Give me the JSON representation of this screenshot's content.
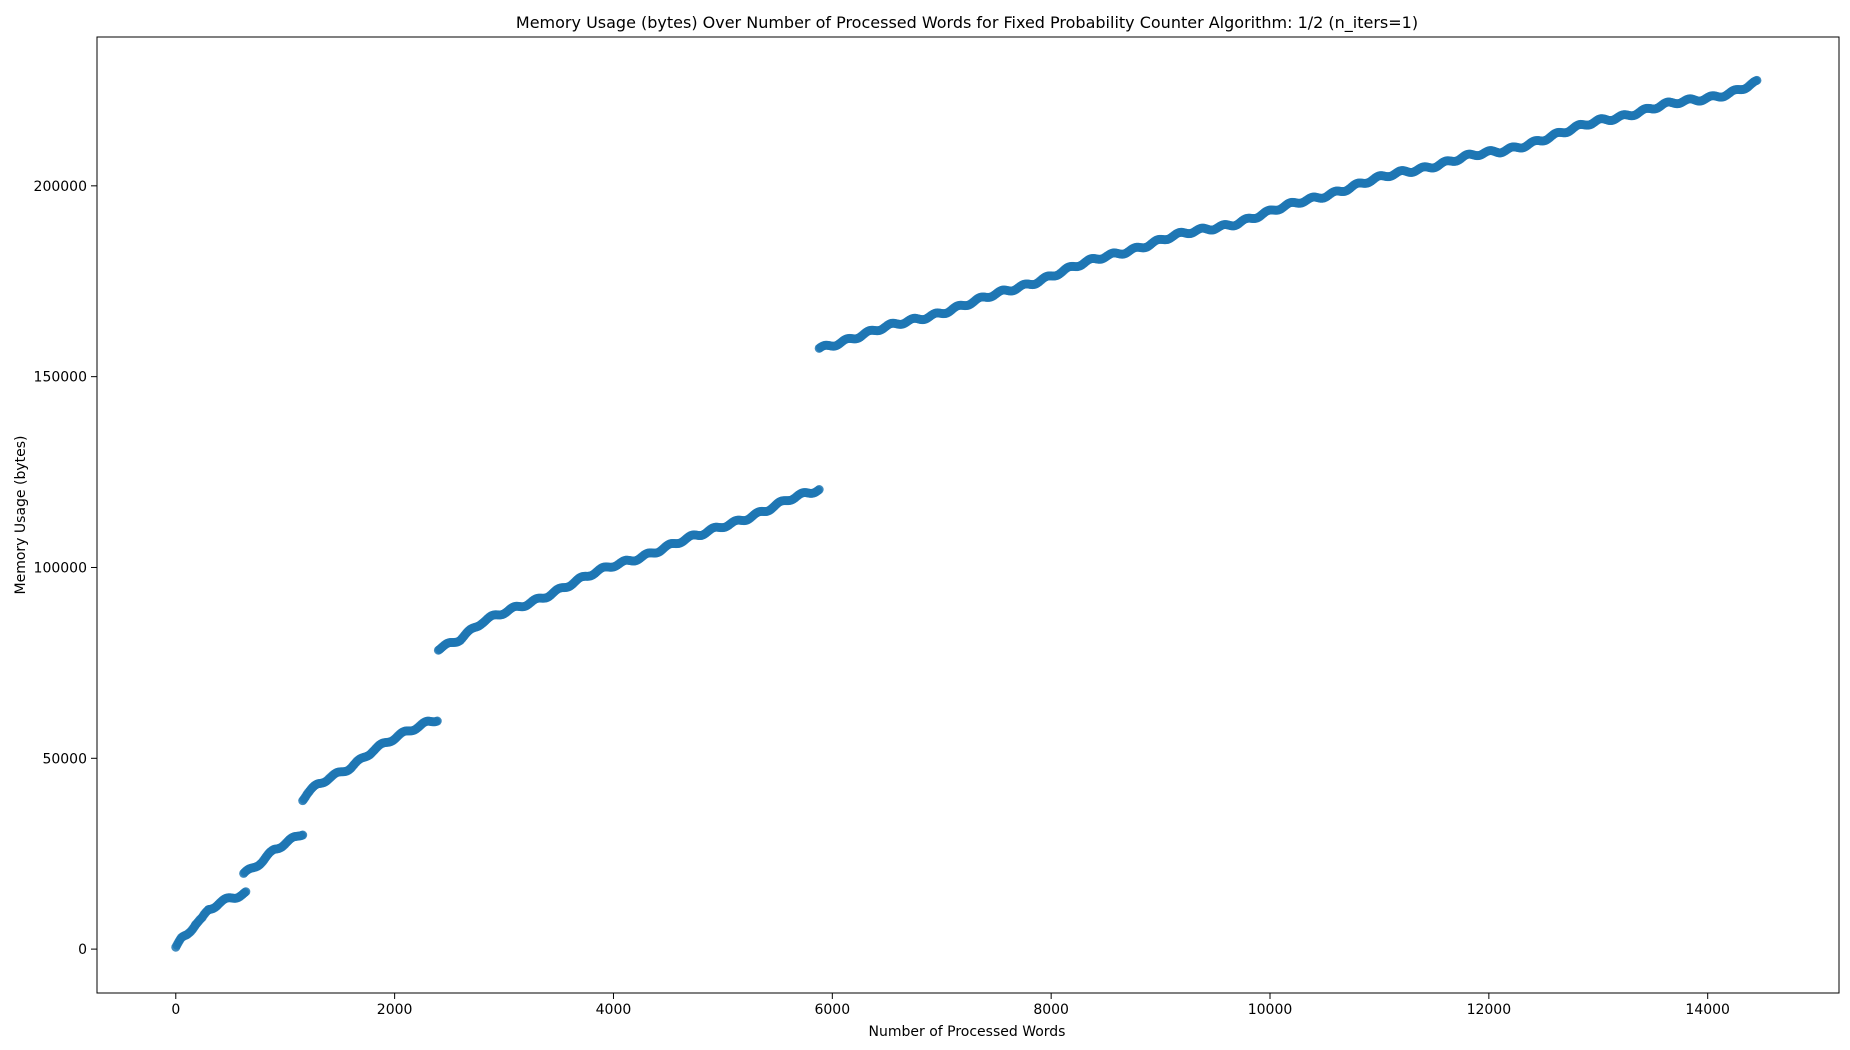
{
  "chart_data": {
    "type": "scatter",
    "title": "Memory Usage (bytes) Over Number of Processed Words for Fixed Probability Counter Algorithm: 1/2 (n_iters=1)",
    "xlabel": "Number of Processed Words",
    "ylabel": "Memory Usage (bytes)",
    "xlim": [
      -720,
      15200
    ],
    "ylim": [
      -11500,
      239000
    ],
    "xticks": [
      0,
      2000,
      4000,
      6000,
      8000,
      10000,
      12000,
      14000
    ],
    "xtick_labels": [
      "0",
      "2000",
      "4000",
      "6000",
      "8000",
      "10000",
      "12000",
      "14000"
    ],
    "yticks": [
      0,
      50000,
      100000,
      150000,
      200000
    ],
    "ytick_labels": [
      "0",
      "50000",
      "100000",
      "150000",
      "200000"
    ],
    "grid": false,
    "legend": false,
    "colors": {
      "marker": "#1f77b4",
      "axis": "#000000",
      "background": "#ffffff"
    },
    "series": [
      {
        "segments": [
          {
            "x": [
              0,
              50,
              100,
              150,
              180
            ],
            "y": [
              500,
              2400,
              3500,
              5200,
              6300
            ]
          },
          {
            "x": [
              180,
              240,
              300
            ],
            "y": [
              6300,
              7500,
              10000
            ]
          },
          {
            "x": [
              300,
              400,
              500,
              600,
              640
            ],
            "y": [
              10000,
              12000,
              13500,
              14500,
              15000
            ]
          },
          {
            "x": [
              620,
              700,
              800,
              900,
              1000,
              1100,
              1160
            ],
            "y": [
              20000,
              21500,
              23500,
              26000,
              27500,
              29000,
              30000
            ]
          },
          {
            "x": [
              1160,
              1200,
              1300,
              1400,
              1500,
              1600,
              1700,
              1800,
              1900,
              2000,
              2100,
              2200,
              2300,
              2390
            ],
            "y": [
              39000,
              40500,
              43000,
              45000,
              46500,
              48000,
              50000,
              52000,
              53500,
              55000,
              56500,
              58000,
              59500,
              60500
            ]
          },
          {
            "x": [
              2400,
              2600,
              2800,
              3000,
              3200,
              3400,
              3600,
              3800,
              4000,
              4200,
              4400,
              4600,
              4800,
              5000,
              5200,
              5400,
              5600,
              5880
            ],
            "y": [
              79000,
              81500,
              85500,
              88000,
              90500,
              93000,
              95500,
              98000,
              100500,
              102500,
              104500,
              106500,
              108500,
              111000,
              113000,
              115000,
              117500,
              120500
            ]
          },
          {
            "x": [
              5880,
              6100,
              6400,
              6700,
              7000,
              7300,
              7600,
              7900,
              8200,
              8500,
              8800,
              9100,
              9400,
              9700,
              10000,
              10300,
              10600,
              10900,
              11200,
              11500,
              11800,
              12100,
              12400,
              12700,
              13000,
              13300,
              13600,
              13900,
              14200,
              14450
            ],
            "y": [
              157500,
              159500,
              162000,
              164500,
              167000,
              169500,
              172500,
              175500,
              178500,
              181500,
              184000,
              186500,
              188500,
              190500,
              193000,
              196000,
              198500,
              201000,
              203500,
              205500,
              207500,
              209000,
              211500,
              214000,
              217000,
              219000,
              221000,
              222500,
              224500,
              227000
            ]
          }
        ]
      }
    ]
  }
}
